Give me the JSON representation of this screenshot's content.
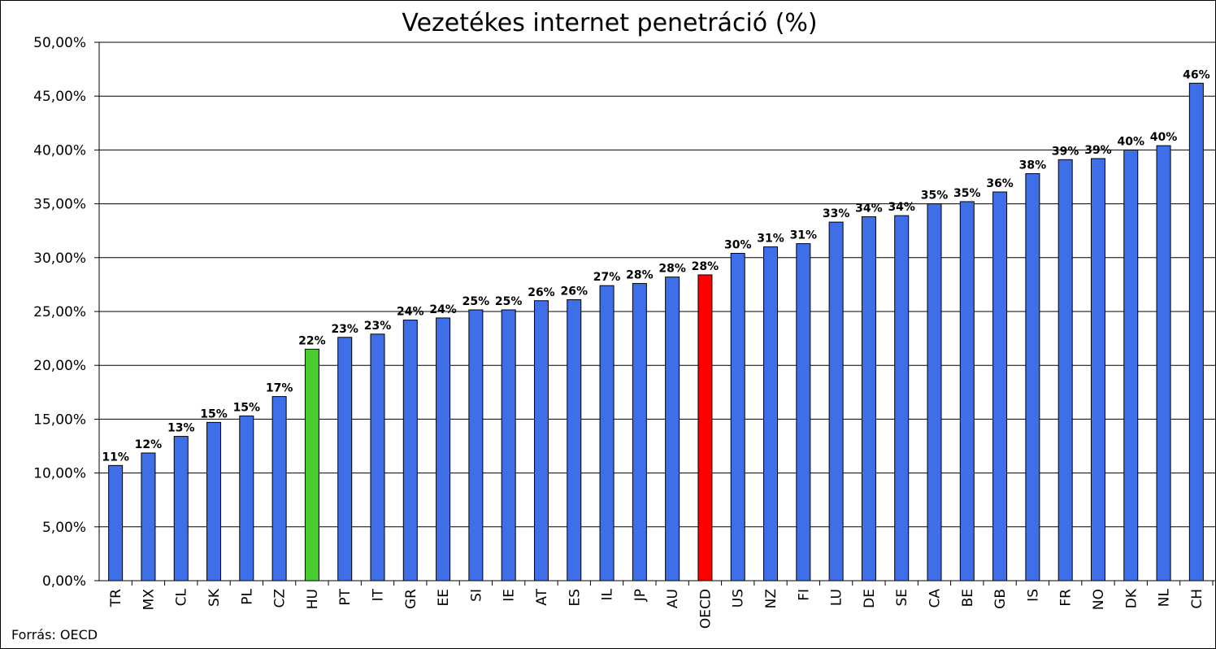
{
  "chart_data": {
    "type": "bar",
    "title": "Vezetékes internet penetráció (%)",
    "source": "Forrás: OECD",
    "categories": [
      "TR",
      "MX",
      "CL",
      "SK",
      "PL",
      "CZ",
      "HU",
      "PT",
      "IT",
      "GR",
      "EE",
      "SI",
      "IE",
      "AT",
      "ES",
      "IL",
      "JP",
      "AU",
      "OECD",
      "US",
      "NZ",
      "FI",
      "LU",
      "DE",
      "SE",
      "CA",
      "BE",
      "GB",
      "IS",
      "FR",
      "NO",
      "DK",
      "NL",
      "CH"
    ],
    "values": [
      10.7,
      11.86,
      13.4,
      14.7,
      15.3,
      17.1,
      21.5,
      22.6,
      22.9,
      24.2,
      24.4,
      25.15,
      25.15,
      26.0,
      26.1,
      27.4,
      27.6,
      28.2,
      28.4,
      30.4,
      31.0,
      31.3,
      33.3,
      33.8,
      33.9,
      35.0,
      35.2,
      36.1,
      37.8,
      39.1,
      39.2,
      40.0,
      40.4,
      46.2
    ],
    "value_labels": [
      "11%",
      "12%",
      "13%",
      "15%",
      "15%",
      "17%",
      "22%",
      "23%",
      "23%",
      "24%",
      "24%",
      "25%",
      "25%",
      "26%",
      "26%",
      "27%",
      "28%",
      "28%",
      "28%",
      "30%",
      "31%",
      "31%",
      "33%",
      "34%",
      "34%",
      "35%",
      "35%",
      "36%",
      "38%",
      "39%",
      "39%",
      "40%",
      "40%",
      "46%"
    ],
    "colors": [
      "#3e6ee8",
      "#3e6ee8",
      "#3e6ee8",
      "#3e6ee8",
      "#3e6ee8",
      "#3e6ee8",
      "#48cc30",
      "#3e6ee8",
      "#3e6ee8",
      "#3e6ee8",
      "#3e6ee8",
      "#3e6ee8",
      "#3e6ee8",
      "#3e6ee8",
      "#3e6ee8",
      "#3e6ee8",
      "#3e6ee8",
      "#3e6ee8",
      "#ff0000",
      "#3e6ee8",
      "#3e6ee8",
      "#3e6ee8",
      "#3e6ee8",
      "#3e6ee8",
      "#3e6ee8",
      "#3e6ee8",
      "#3e6ee8",
      "#3e6ee8",
      "#3e6ee8",
      "#3e6ee8",
      "#3e6ee8",
      "#3e6ee8",
      "#3e6ee8",
      "#3e6ee8"
    ],
    "ylim": [
      0,
      50
    ],
    "yticks": [
      {
        "value": 0,
        "label": "0,00%"
      },
      {
        "value": 5,
        "label": "5,00%"
      },
      {
        "value": 10,
        "label": "10,00%"
      },
      {
        "value": 15,
        "label": "15,00%"
      },
      {
        "value": 20,
        "label": "20,00%"
      },
      {
        "value": 25,
        "label": "25,00%"
      },
      {
        "value": 30,
        "label": "30,00%"
      },
      {
        "value": 35,
        "label": "35,00%"
      },
      {
        "value": 40,
        "label": "40,00%"
      },
      {
        "value": 45,
        "label": "45,00%"
      },
      {
        "value": 50,
        "label": "50,00%"
      }
    ],
    "grid": true
  }
}
